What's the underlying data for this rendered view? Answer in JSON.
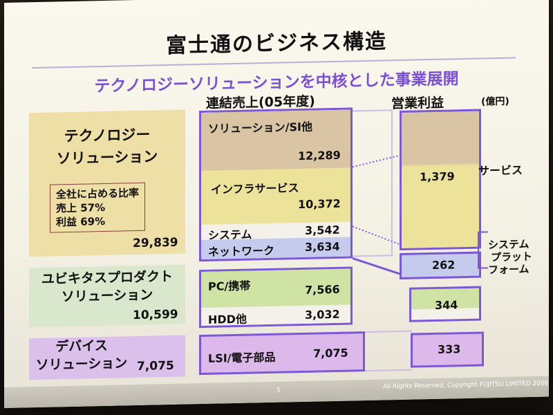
{
  "title": "富士通のビジネス構造",
  "subtitle": "テクノロジーソリューションを中核とした事業展開",
  "headers": {
    "sales": "連結売上(05年度)",
    "profit": "営業利益",
    "unit": "(億円)"
  },
  "segments": {
    "technology": {
      "label_line1": "テクノロジー",
      "label_line2": "ソリューション",
      "share_title": "全社に占める比率",
      "share_sales": "売上  57%",
      "share_profit": "利益  69%",
      "total": "29,839"
    },
    "ubiquitous": {
      "label_line1": "ユビキタスプロダクト",
      "label_line2": "ソリューション",
      "total": "10,599"
    },
    "device": {
      "label_line1": "デバイス",
      "label_line2": "ソリューション",
      "total": "7,075"
    }
  },
  "sales_items": [
    {
      "label": "ソリューション/SI他",
      "value": "12,289"
    },
    {
      "label": "インフラサービス",
      "value": "10,372"
    },
    {
      "label": "システム",
      "value": "3,542"
    },
    {
      "label": "ネットワーク",
      "value": "3,634"
    },
    {
      "label": "PC/携帯",
      "value": "7,566"
    },
    {
      "label": "HDD他",
      "value": "3,032"
    },
    {
      "label": "LSI/電子部品",
      "value": "7,075"
    }
  ],
  "profit_items": [
    {
      "value": "1,379",
      "side_label": "サービス"
    },
    {
      "value": "262",
      "side_label_line1": "システム",
      "side_label_line2": "プラット",
      "side_label_line3": "フォーム"
    },
    {
      "value": "344"
    },
    {
      "value": "333"
    }
  ],
  "footer": {
    "page": "5",
    "copyright": "All Rights Reserved, Copyright FUJITSU LIMITED 2006"
  },
  "colors": {
    "tan": "#d9c4a4",
    "yellow": "#ece29a",
    "lavender": "#c4cbec",
    "green": "#cfe3a4",
    "purple": "#dcb9ea",
    "frame": "#7d58d6"
  }
}
